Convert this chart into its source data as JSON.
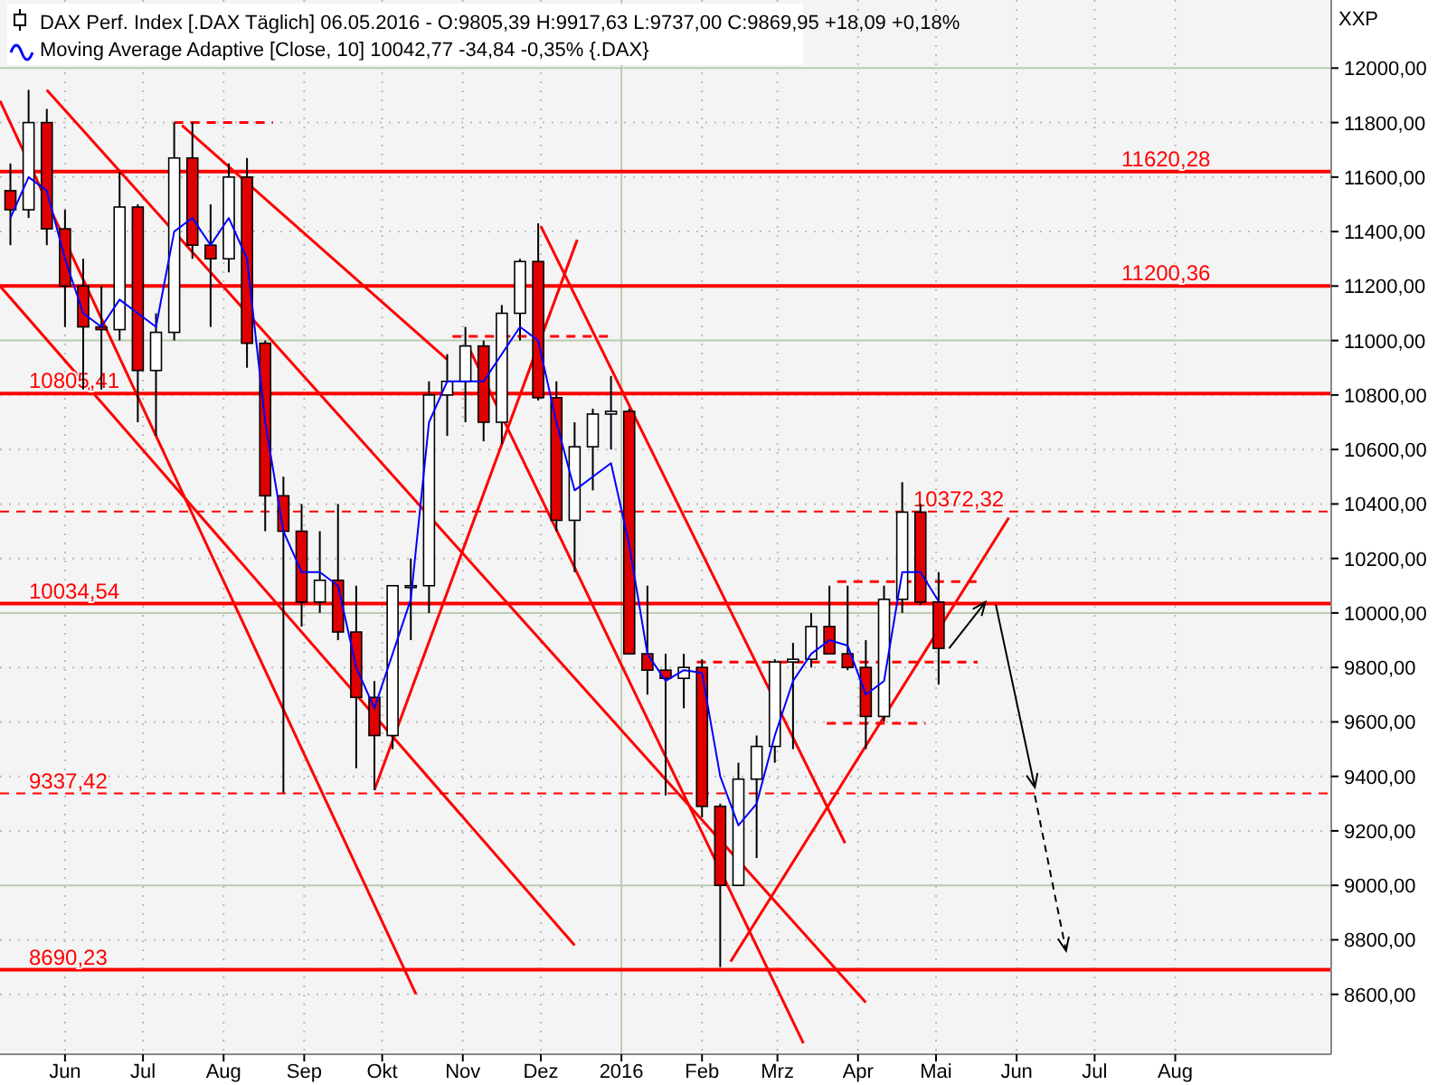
{
  "chart_data": {
    "type": "candlestick",
    "ylabel": "XXP",
    "legend": "top left",
    "grid": true,
    "xlim": [
      "2015-05-07",
      "2016-09-30"
    ],
    "xticks": [
      {
        "value": "2015-06-01",
        "label": "Jun"
      },
      {
        "value": "2015-07-01",
        "label": "Jul"
      },
      {
        "value": "2015-08-01",
        "label": "Aug"
      },
      {
        "value": "2015-09-01",
        "label": "Sep"
      },
      {
        "value": "2015-10-01",
        "label": "Okt"
      },
      {
        "value": "2015-11-01",
        "label": "Nov"
      },
      {
        "value": "2015-12-01",
        "label": "Dez"
      },
      {
        "value": "2016-01-01",
        "label": "2016"
      },
      {
        "value": "2016-02-01",
        "label": "Feb"
      },
      {
        "value": "2016-03-01",
        "label": "Mrz"
      },
      {
        "value": "2016-04-01",
        "label": "Apr"
      },
      {
        "value": "2016-05-01",
        "label": "Mai"
      },
      {
        "value": "2016-06-01",
        "label": "Jun"
      },
      {
        "value": "2016-07-01",
        "label": "Jul"
      },
      {
        "value": "2016-08-01",
        "label": "Aug"
      }
    ],
    "ylim": [
      8380,
      12250
    ],
    "yticks": [
      {
        "value": 8600,
        "label": "8600,00"
      },
      {
        "value": 8800,
        "label": "8800,00"
      },
      {
        "value": 9000,
        "label": "9000,00"
      },
      {
        "value": 9200,
        "label": "9200,00"
      },
      {
        "value": 9400,
        "label": "9400,00"
      },
      {
        "value": 9600,
        "label": "9600,00"
      },
      {
        "value": 9800,
        "label": "9800,00"
      },
      {
        "value": 10000,
        "label": "10000,00"
      },
      {
        "value": 10200,
        "label": "10200,00"
      },
      {
        "value": 10400,
        "label": "10400,00"
      },
      {
        "value": 10600,
        "label": "10600,00"
      },
      {
        "value": 10800,
        "label": "10800,00"
      },
      {
        "value": 11000,
        "label": "11000,00"
      },
      {
        "value": 11200,
        "label": "11200,00"
      },
      {
        "value": 11400,
        "label": "11400,00"
      },
      {
        "value": 11600,
        "label": "11600,00"
      },
      {
        "value": 11800,
        "label": "11800,00"
      },
      {
        "value": 12000,
        "label": "12000,00"
      }
    ],
    "title": "DAX Perf. Index [.DAX  Täglich] 06.05.2016 - O:9805,39 H:9917,63 L:9737,00 C:9869,95 +18,09 +0,18%",
    "x": [
      "2015-05-11",
      "2015-05-18",
      "2015-05-25",
      "2015-06-01",
      "2015-06-08",
      "2015-06-15",
      "2015-06-22",
      "2015-06-29",
      "2015-07-06",
      "2015-07-13",
      "2015-07-20",
      "2015-07-27",
      "2015-08-03",
      "2015-08-10",
      "2015-08-17",
      "2015-08-24",
      "2015-08-31",
      "2015-09-07",
      "2015-09-14",
      "2015-09-21",
      "2015-09-28",
      "2015-10-05",
      "2015-10-12",
      "2015-10-19",
      "2015-10-26",
      "2015-11-02",
      "2015-11-09",
      "2015-11-16",
      "2015-11-23",
      "2015-11-30",
      "2015-12-07",
      "2015-12-14",
      "2015-12-21",
      "2015-12-28",
      "2016-01-04",
      "2016-01-11",
      "2016-01-18",
      "2016-01-25",
      "2016-02-01",
      "2016-02-08",
      "2016-02-15",
      "2016-02-22",
      "2016-02-29",
      "2016-03-07",
      "2016-03-14",
      "2016-03-21",
      "2016-03-28",
      "2016-04-04",
      "2016-04-11",
      "2016-04-18",
      "2016-04-25",
      "2016-05-02"
    ],
    "ohlc": [
      [
        11550,
        11650,
        11350,
        11480
      ],
      [
        11480,
        11920,
        11450,
        11800
      ],
      [
        11800,
        11850,
        11350,
        11410
      ],
      [
        11410,
        11480,
        11050,
        11200
      ],
      [
        11200,
        11300,
        10820,
        11050
      ],
      [
        11050,
        11200,
        10820,
        11040
      ],
      [
        11040,
        11620,
        11000,
        11490
      ],
      [
        11490,
        11500,
        10700,
        10890
      ],
      [
        10890,
        11100,
        10650,
        11030
      ],
      [
        11030,
        11800,
        11000,
        11670
      ],
      [
        11670,
        11800,
        11300,
        11350
      ],
      [
        11350,
        11500,
        11050,
        11300
      ],
      [
        11300,
        11650,
        11250,
        11600
      ],
      [
        11600,
        11670,
        10900,
        10990
      ],
      [
        10990,
        11000,
        10300,
        10430
      ],
      [
        10430,
        10500,
        9340,
        10300
      ],
      [
        10300,
        10400,
        9950,
        10040
      ],
      [
        10040,
        10300,
        10000,
        10120
      ],
      [
        10120,
        10400,
        9900,
        9930
      ],
      [
        9930,
        10100,
        9430,
        9690
      ],
      [
        9690,
        9750,
        9350,
        9550
      ],
      [
        9550,
        10100,
        9500,
        10100
      ],
      [
        10100,
        10200,
        9900,
        10100
      ],
      [
        10100,
        10850,
        10000,
        10800
      ],
      [
        10800,
        10950,
        10650,
        10850
      ],
      [
        10850,
        11050,
        10700,
        10980
      ],
      [
        10980,
        11000,
        10630,
        10700
      ],
      [
        10700,
        11130,
        10620,
        11100
      ],
      [
        11100,
        11300,
        11000,
        11290
      ],
      [
        11290,
        11430,
        10780,
        10790
      ],
      [
        10790,
        10850,
        10300,
        10340
      ],
      [
        10340,
        10700,
        10150,
        10610
      ],
      [
        10610,
        10750,
        10450,
        10730
      ],
      [
        10730,
        10870,
        10600,
        10740
      ],
      [
        10740,
        10750,
        9850,
        9850
      ],
      [
        9850,
        10100,
        9700,
        9790
      ],
      [
        9790,
        9850,
        9330,
        9760
      ],
      [
        9760,
        9850,
        9650,
        9800
      ],
      [
        9800,
        9830,
        9250,
        9290
      ],
      [
        9290,
        9300,
        8700,
        9000
      ],
      [
        9000,
        9450,
        9000,
        9390
      ],
      [
        9390,
        9550,
        9100,
        9510
      ],
      [
        9510,
        9830,
        9450,
        9820
      ],
      [
        9820,
        9890,
        9500,
        9830
      ],
      [
        9830,
        10000,
        9800,
        9950
      ],
      [
        9950,
        10100,
        9850,
        9850
      ],
      [
        9850,
        10100,
        9790,
        9800
      ],
      [
        9800,
        9900,
        9500,
        9620
      ],
      [
        9620,
        10100,
        9600,
        10050
      ],
      [
        10050,
        10480,
        10000,
        10370
      ],
      [
        10370,
        10400,
        10030,
        10040
      ],
      [
        10040,
        10150,
        9737,
        9870
      ]
    ],
    "series": [
      {
        "type": "line",
        "name": "Moving Average Adaptive [Close, 10] 10042,77 -34,84 -0,35% {.DAX}",
        "color": "#0000ff",
        "values": [
          11450,
          11600,
          11550,
          11300,
          11100,
          11050,
          11150,
          11100,
          11050,
          11400,
          11450,
          11350,
          11450,
          11300,
          10700,
          10300,
          10150,
          10150,
          10100,
          9800,
          9650,
          9850,
          10050,
          10700,
          10850,
          10850,
          10850,
          10950,
          11050,
          11000,
          10700,
          10450,
          10500,
          10550,
          10250,
          9850,
          9750,
          9790,
          9780,
          9400,
          9220,
          9300,
          9550,
          9750,
          9850,
          9900,
          9880,
          9700,
          9750,
          10150,
          10150,
          10043
        ]
      },
      {
        "type": "line",
        "color": "#ff0000",
        "x": [
          "2015-05-07",
          "2015-10-14"
        ],
        "values": [
          11880,
          8600
        ]
      },
      {
        "type": "line",
        "color": "#ff0000",
        "x": [
          "2015-09-28",
          "2015-12-15"
        ],
        "values": [
          9350,
          11370
        ]
      },
      {
        "type": "line",
        "color": "#ff0000",
        "x": [
          "2016-02-12",
          "2016-05-29"
        ],
        "values": [
          8720,
          10350
        ]
      },
      {
        "type": "line",
        "color": "#ff0000",
        "x": [
          "2015-05-25",
          "2016-04-04"
        ],
        "values": [
          11920,
          8570
        ]
      },
      {
        "type": "line",
        "color": "#ff0000",
        "x": [
          "2015-05-07",
          "2015-12-14"
        ],
        "values": [
          11200,
          8780
        ]
      },
      {
        "type": "line",
        "color": "#ff0000",
        "x": [
          "2015-07-16",
          "2015-10-26"
        ],
        "values": [
          11790,
          10930
        ]
      },
      {
        "type": "line",
        "color": "#ff0000",
        "x": [
          "2015-12-01",
          "2016-03-27"
        ],
        "values": [
          11420,
          9155
        ]
      },
      {
        "type": "line",
        "color": "#ff0000",
        "x": [
          "2015-11-03",
          "2016-03-11"
        ],
        "values": [
          10980,
          8420
        ]
      },
      {
        "type": "line",
        "color": "#ff0000",
        "line_style": "dashed",
        "x": [
          "2015-07-13",
          "2015-08-20"
        ],
        "values": [
          11800,
          11800
        ]
      },
      {
        "type": "line",
        "color": "#ff0000",
        "line_style": "dashed",
        "x": [
          "2015-10-28",
          "2015-12-29"
        ],
        "values": [
          11015,
          11015
        ]
      },
      {
        "type": "line",
        "color": "#ff0000",
        "line_style": "dashed",
        "x": [
          "2016-01-30",
          "2016-05-17"
        ],
        "values": [
          9820,
          9820
        ]
      },
      {
        "type": "line",
        "color": "#ff0000",
        "line_style": "dashed",
        "x": [
          "2016-03-20",
          "2016-04-27"
        ],
        "values": [
          9595,
          9595
        ]
      },
      {
        "type": "line",
        "color": "#ff0000",
        "line_style": "dashed",
        "x": [
          "2016-03-24",
          "2016-05-18"
        ],
        "values": [
          10115,
          10115
        ]
      }
    ],
    "ref_lines": [
      {
        "axis": "y",
        "value": 11620.28,
        "label": "11620,28",
        "color": "#ff0000"
      },
      {
        "axis": "y",
        "value": 11200.36,
        "label": "11200,36",
        "color": "#ff0000"
      },
      {
        "axis": "y",
        "value": 10805.41,
        "label": "10805,41",
        "color": "#ff0000"
      },
      {
        "axis": "y",
        "value": 10372.32,
        "label": "10372,32",
        "color": "#ff0000",
        "line_style": "dashed"
      },
      {
        "axis": "y",
        "value": 10034.54,
        "label": "10034,54",
        "color": "#ff0000"
      },
      {
        "axis": "y",
        "value": 9337.42,
        "label": "9337,42",
        "color": "#ff0000",
        "line_style": "dashed"
      },
      {
        "axis": "y",
        "value": 8690.23,
        "label": "8690,23",
        "color": "#ff0000"
      }
    ]
  }
}
